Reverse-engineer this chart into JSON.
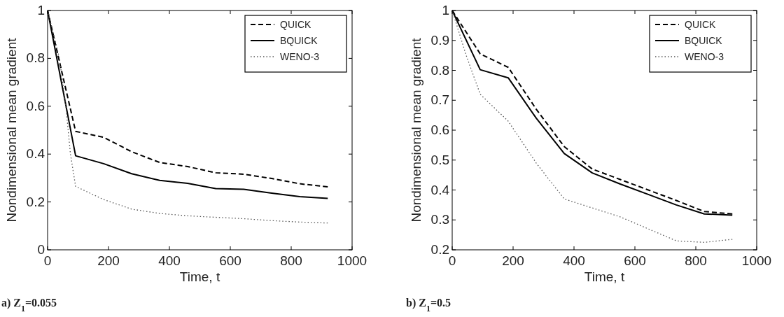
{
  "chart_data": [
    {
      "type": "line",
      "xlabel": "Time, t",
      "ylabel": "Nondimensional mean gradient",
      "annotations": [
        "a) Z$_{1}$=0.055"
      ],
      "xlim": [
        0,
        1000
      ],
      "xticks": [
        0,
        200,
        400,
        600,
        800,
        1000
      ],
      "ylim": [
        0,
        1
      ],
      "yticks": [
        0,
        0.2,
        0.4,
        0.6,
        0.8,
        1
      ],
      "legend": "top right",
      "grid": false,
      "series": [
        {
          "name": "QUICK",
          "color": "#000000",
          "line_style": "dashed",
          "x": [
            0,
            92,
            184,
            276,
            368,
            460,
            552,
            644,
            736,
            828,
            920
          ],
          "values": [
            1,
            0.495,
            0.47,
            0.41,
            0.365,
            0.348,
            0.322,
            0.316,
            0.298,
            0.276,
            0.263
          ]
        },
        {
          "name": "BQUICK",
          "color": "#000000",
          "line_style": "solid",
          "x": [
            0,
            92,
            184,
            276,
            368,
            460,
            552,
            644,
            736,
            828,
            920
          ],
          "values": [
            1,
            0.393,
            0.36,
            0.318,
            0.29,
            0.278,
            0.256,
            0.253,
            0.237,
            0.222,
            0.215
          ]
        },
        {
          "name": "WENO-3",
          "color": "#555555",
          "line_style": "dotted",
          "x": [
            0,
            39,
            60,
            75,
            92,
            184,
            276,
            368,
            460,
            552,
            644,
            736,
            828,
            920
          ],
          "values": [
            1,
            0.8,
            0.6,
            0.4,
            0.265,
            0.21,
            0.17,
            0.152,
            0.142,
            0.136,
            0.13,
            0.122,
            0.116,
            0.112
          ]
        }
      ]
    },
    {
      "type": "line",
      "xlabel": "Time, t",
      "ylabel": "Nondimensional mean gradient",
      "annotations": [
        "b) Z$_{1}$=0.5"
      ],
      "xlim": [
        0,
        1000
      ],
      "xticks": [
        0,
        200,
        400,
        600,
        800,
        1000
      ],
      "ylim": [
        0.2,
        1
      ],
      "yticks": [
        0.2,
        0.3,
        0.4,
        0.5,
        0.6,
        0.7,
        0.8,
        0.9,
        1
      ],
      "legend": "top right",
      "grid": false,
      "series": [
        {
          "name": "QUICK",
          "color": "#000000",
          "line_style": "dashed",
          "x": [
            0,
            92,
            184,
            276,
            368,
            460,
            552,
            644,
            736,
            828,
            920
          ],
          "values": [
            1,
            0.855,
            0.81,
            0.67,
            0.545,
            0.47,
            0.435,
            0.4,
            0.365,
            0.328,
            0.32
          ]
        },
        {
          "name": "BQUICK",
          "color": "#000000",
          "line_style": "solid",
          "x": [
            0,
            92,
            184,
            276,
            368,
            460,
            552,
            644,
            736,
            828,
            920
          ],
          "values": [
            1,
            0.802,
            0.775,
            0.64,
            0.522,
            0.457,
            0.42,
            0.385,
            0.35,
            0.32,
            0.316
          ]
        },
        {
          "name": "WENO-3",
          "color": "#555555",
          "line_style": "dotted",
          "x": [
            0,
            46,
            92,
            184,
            276,
            368,
            460,
            552,
            644,
            736,
            828,
            920
          ],
          "values": [
            1,
            0.85,
            0.72,
            0.63,
            0.49,
            0.37,
            0.34,
            0.31,
            0.27,
            0.23,
            0.225,
            0.235
          ]
        }
      ]
    }
  ]
}
